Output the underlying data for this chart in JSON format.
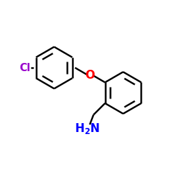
{
  "bg_color": "#ffffff",
  "bond_color": "#000000",
  "o_color": "#ff0000",
  "cl_color": "#9900cc",
  "nh2_color": "#0000ff",
  "line_width": 1.8,
  "font_size_label": 11,
  "fig_size": [
    2.5,
    2.5
  ],
  "dpi": 100,
  "cl_label": "Cl",
  "o_label": "O",
  "nh2_label": "H",
  "sub2": "2",
  "n_label": "N"
}
